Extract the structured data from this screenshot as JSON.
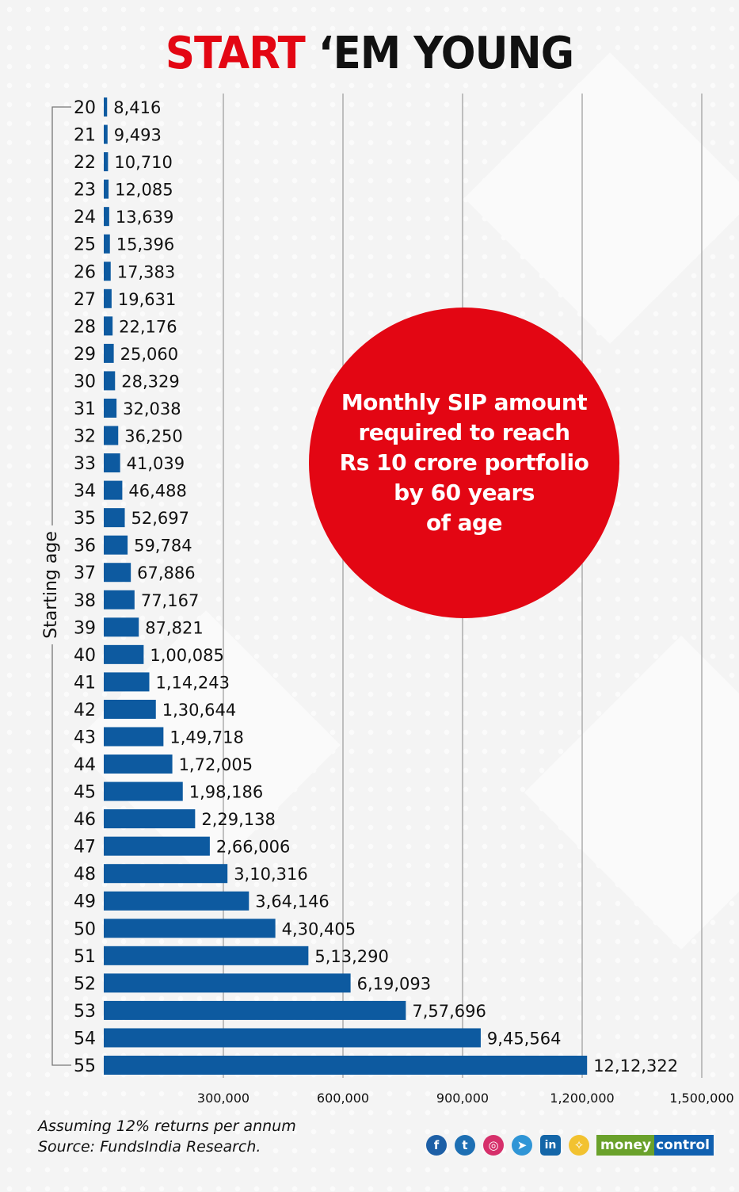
{
  "title": {
    "part1": "START",
    "part2": "‘EM YOUNG"
  },
  "callout": "Monthly SIP amount\nrequired to reach\nRs 10 crore portfolio\nby 60 years\nof age",
  "footnotes": {
    "assumption": "Assuming 12% returns per annum",
    "source": "Source: FundsIndia Research."
  },
  "social_icons": [
    {
      "name": "facebook-icon",
      "glyph": "f",
      "color": "#1d5fa6"
    },
    {
      "name": "twitter-icon",
      "glyph": "t",
      "color": "#1d6fb3"
    },
    {
      "name": "instagram-icon",
      "glyph": "◎",
      "color": "#d6306b"
    },
    {
      "name": "telegram-icon",
      "glyph": "➤",
      "color": "#2f95d6"
    },
    {
      "name": "linkedin-icon",
      "glyph": "in",
      "color": "#1466a8"
    },
    {
      "name": "koo-icon",
      "glyph": "✧",
      "color": "#f2c230"
    }
  ],
  "brand": {
    "part1": "money",
    "part2": "control"
  },
  "colors": {
    "bar": "#0d5aa0",
    "accent": "#e30613",
    "grid": "#9a9a9a"
  },
  "chart_data": {
    "type": "bar",
    "orientation": "horizontal",
    "title": "START ‘EM YOUNG",
    "subtitle": "Monthly SIP amount required to reach Rs 10 crore portfolio by 60 years of age",
    "xlabel": "",
    "ylabel": "Starting age",
    "xlim": [
      0,
      1500000
    ],
    "xticks": [
      300000,
      600000,
      900000,
      1200000,
      1500000
    ],
    "xtick_labels": [
      "300,000",
      "600,000",
      "900,000",
      "1,200,000",
      "1,500,000"
    ],
    "grid": true,
    "categories": [
      "20",
      "21",
      "22",
      "23",
      "24",
      "25",
      "26",
      "27",
      "28",
      "29",
      "30",
      "31",
      "32",
      "33",
      "34",
      "35",
      "36",
      "37",
      "38",
      "39",
      "40",
      "41",
      "42",
      "43",
      "44",
      "45",
      "46",
      "47",
      "48",
      "49",
      "50",
      "51",
      "52",
      "53",
      "54",
      "55"
    ],
    "values": [
      8416,
      9493,
      10710,
      12085,
      13639,
      15396,
      17383,
      19631,
      22176,
      25060,
      28329,
      32038,
      36250,
      41039,
      46488,
      52697,
      59784,
      67886,
      77167,
      87821,
      100085,
      114243,
      130644,
      149718,
      172005,
      198186,
      229138,
      266006,
      310316,
      364146,
      430405,
      513290,
      619093,
      757696,
      945564,
      1212322
    ],
    "data_labels": [
      "8,416",
      "9,493",
      "10,710",
      "12,085",
      "13,639",
      "15,396",
      "17,383",
      "19,631",
      "22,176",
      "25,060",
      "28,329",
      "32,038",
      "36,250",
      "41,039",
      "46,488",
      "52,697",
      "59,784",
      "67,886",
      "77,167",
      "87,821",
      "1,00,085",
      "1,14,243",
      "1,30,644",
      "1,49,718",
      "1,72,005",
      "1,98,186",
      "2,29,138",
      "2,66,006",
      "3,10,316",
      "3,64,146",
      "4,30,405",
      "5,13,290",
      "6,19,093",
      "7,57,696",
      "9,45,564",
      "12,12,322"
    ]
  }
}
